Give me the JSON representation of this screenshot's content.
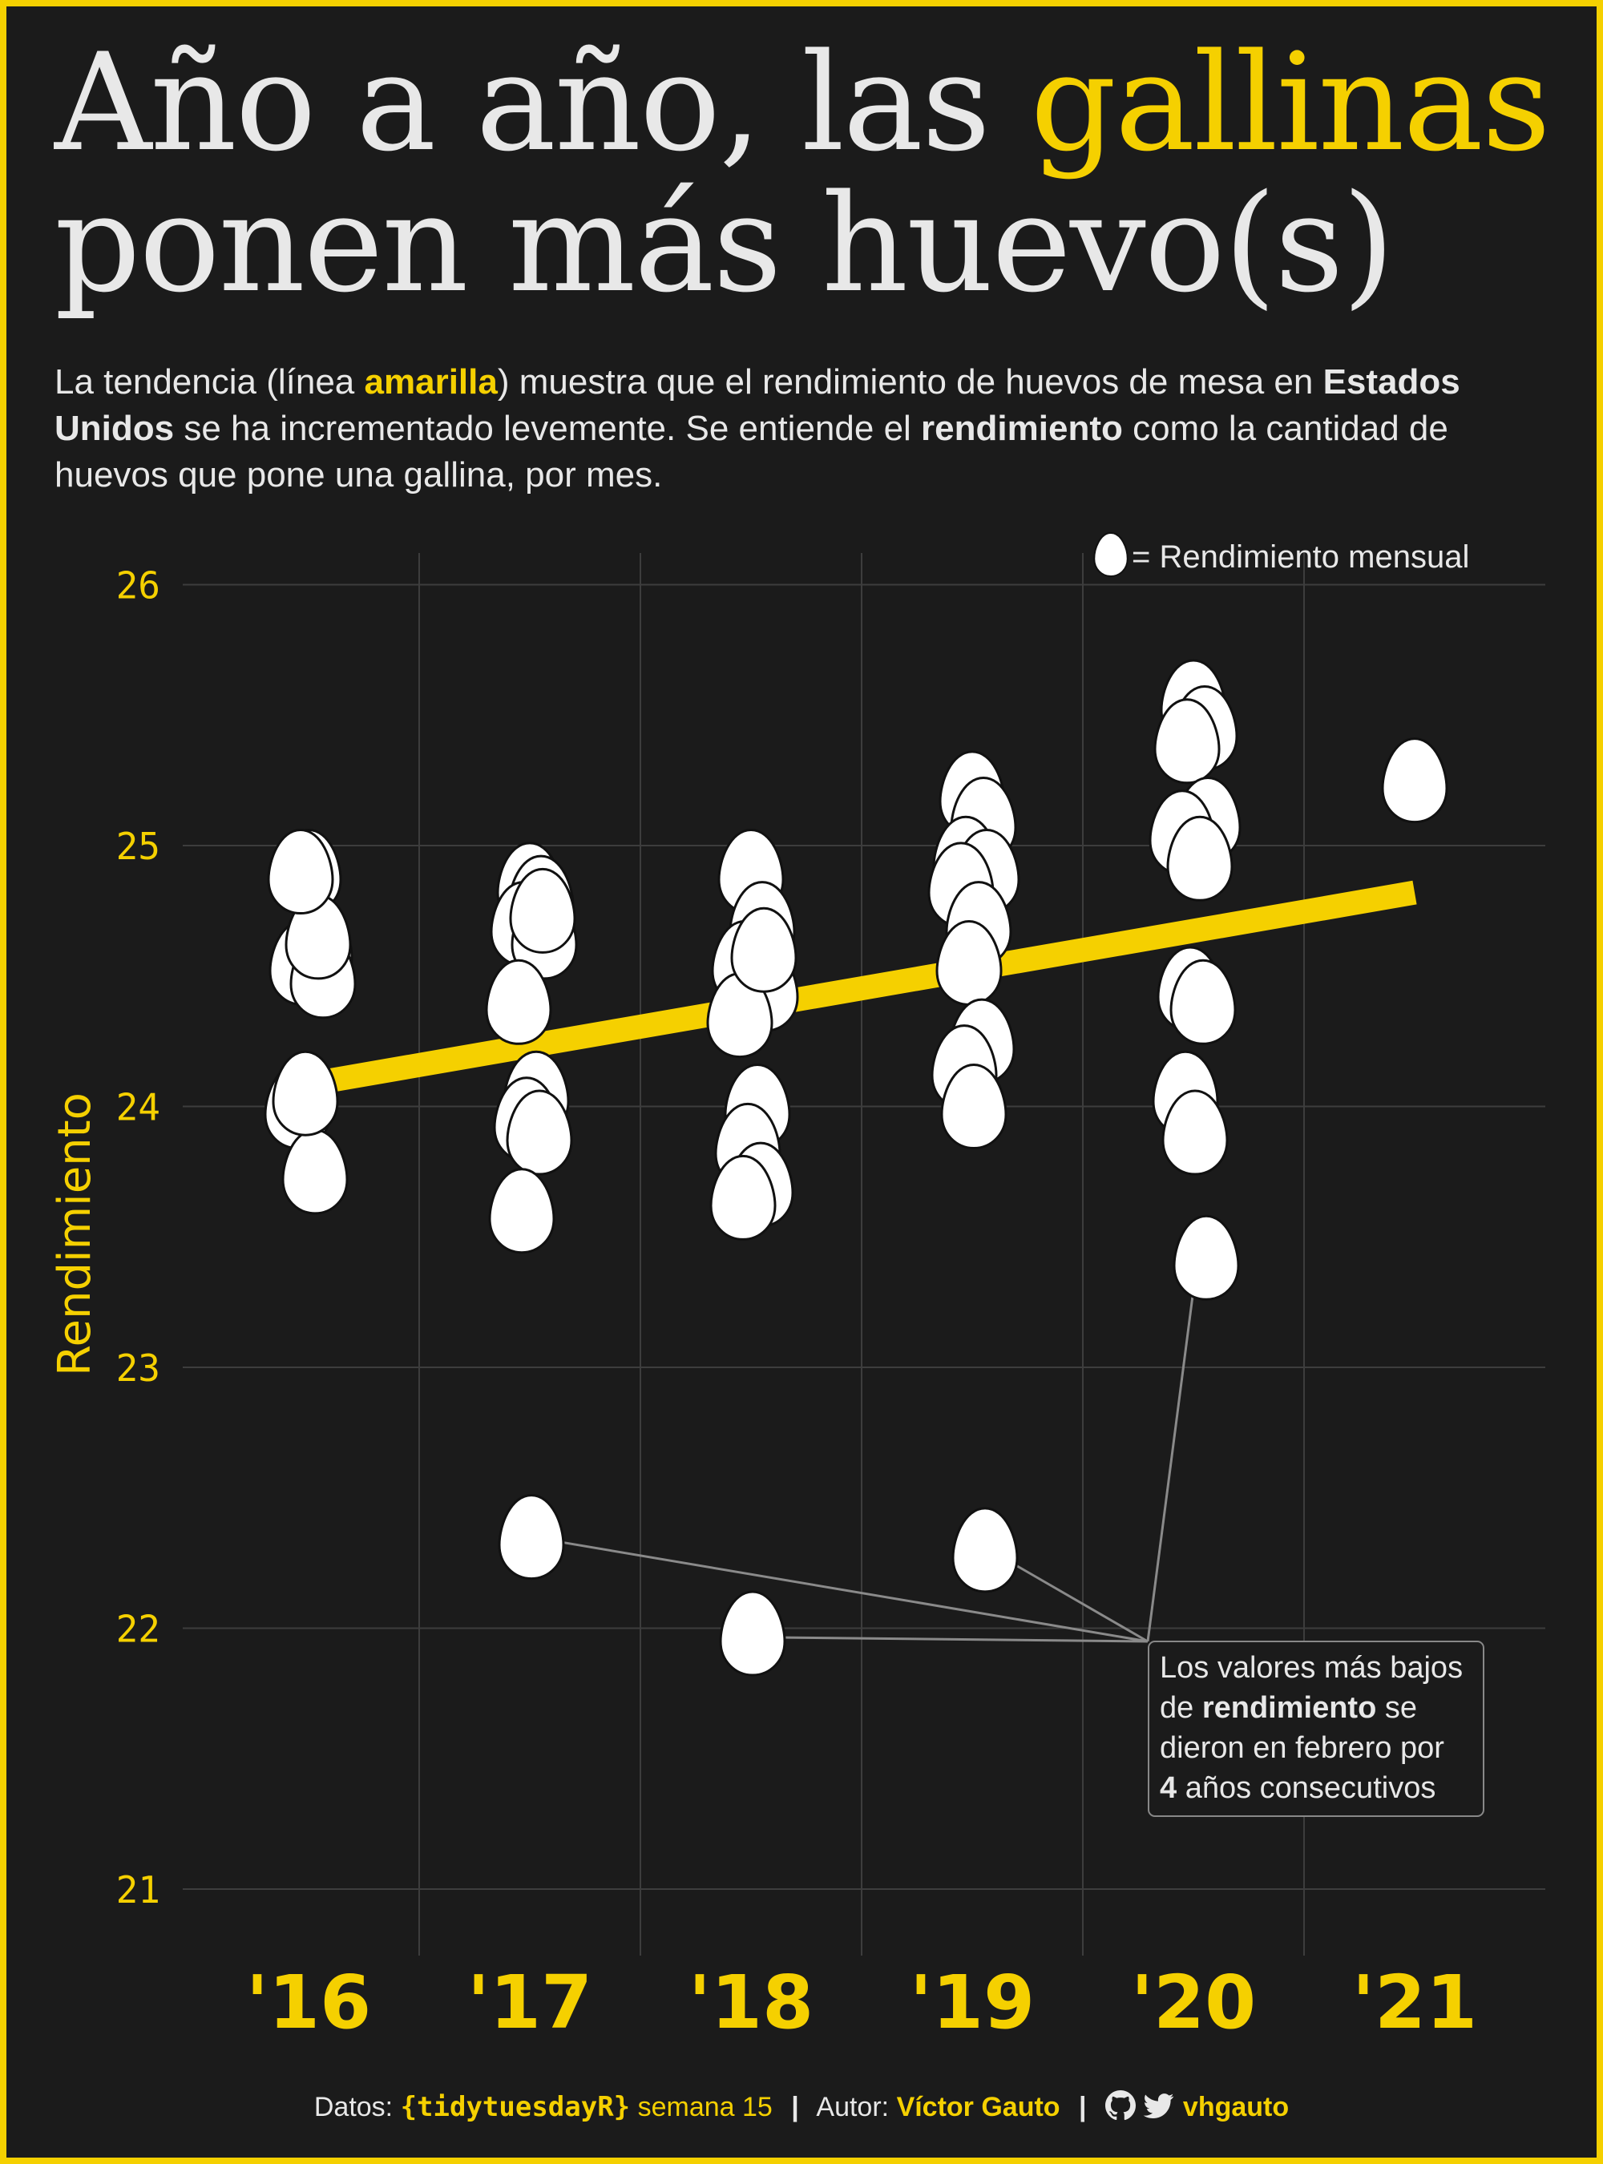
{
  "header": {
    "title_part1": "Año a año, las ",
    "title_highlight": "gallinas",
    "title_part2": "ponen más huevo(s)",
    "subtitle_1": "La tendencia (línea ",
    "subtitle_amarilla": "amarilla",
    "subtitle_2": ") muestra que el rendimiento de huevos de mesa en ",
    "subtitle_eeuu": "Estados Unidos",
    "subtitle_3": " se ha incrementado levemente. Se entiende el ",
    "subtitle_rend": "rendimiento",
    "subtitle_4": " como la cantidad de huevos que pone una gallina, por mes."
  },
  "colors": {
    "background": "#1b1b1b",
    "accent": "#f5d000",
    "egg": "#ffffff",
    "grid": "#3d3d3d",
    "text": "#e8e8e8"
  },
  "chart_data": {
    "type": "scatter",
    "title": "Año a año, las gallinas ponen más huevo(s)",
    "xlabel": "",
    "ylabel": "Rendimiento",
    "ylim": [
      21,
      26
    ],
    "y_ticks": [
      "21",
      "22",
      "23",
      "24",
      "25",
      "26"
    ],
    "x_tick_labels": [
      "'16",
      "'17",
      "'18",
      "'19",
      "'20",
      "'21"
    ],
    "legend": {
      "label": "= Rendimiento mensual",
      "placement": "top-right"
    },
    "trend": {
      "name": "tendencia",
      "start": [
        2016.0,
        24.08
      ],
      "end": [
        2021.0,
        24.82
      ]
    },
    "series": [
      {
        "name": "2016",
        "x": 2016,
        "values": [
          24.9,
          24.6,
          24.55,
          24.5,
          24.0,
          23.75,
          24.05,
          24.65,
          24.9
        ]
      },
      {
        "name": "2017",
        "x": 2017,
        "values": [
          24.85,
          24.8,
          24.7,
          24.65,
          24.4,
          24.05,
          23.95,
          23.9,
          23.6,
          22.35,
          24.75
        ]
      },
      {
        "name": "2018",
        "x": 2018,
        "values": [
          24.9,
          24.7,
          24.55,
          24.45,
          24.35,
          24.0,
          23.85,
          23.7,
          23.65,
          21.98,
          24.6
        ]
      },
      {
        "name": "2019",
        "x": 2019,
        "values": [
          25.2,
          25.1,
          24.95,
          24.9,
          24.85,
          24.7,
          24.55,
          24.25,
          24.15,
          24.0,
          22.3
        ]
      },
      {
        "name": "2020",
        "x": 2020,
        "values": [
          25.55,
          25.45,
          25.4,
          25.1,
          25.05,
          24.95,
          24.45,
          24.4,
          24.05,
          23.9,
          23.42
        ]
      },
      {
        "name": "2021",
        "x": 2021,
        "values": [
          25.25
        ]
      }
    ],
    "annotation": {
      "line1": "Los valores más bajos",
      "line2_pre": "de ",
      "line2_bold": "rendimiento",
      "line2_post": " se",
      "line3": "dieron en febrero por",
      "line4_bold": "4",
      "line4_post": " años consecutivos",
      "targets": [
        {
          "x": 2017,
          "y": 22.35
        },
        {
          "x": 2018,
          "y": 21.98
        },
        {
          "x": 2019,
          "y": 22.3
        },
        {
          "x": 2020,
          "y": 23.42
        }
      ]
    }
  },
  "footer": {
    "datos_label": "Datos:",
    "datos_source": "{tidytuesdayR}",
    "semana": "semana 15",
    "sep": "|",
    "autor_label": "Autor:",
    "autor_name": "Víctor Gauto",
    "handle": "vhgauto",
    "github_icon": "github-icon",
    "twitter_icon": "twitter-icon"
  }
}
